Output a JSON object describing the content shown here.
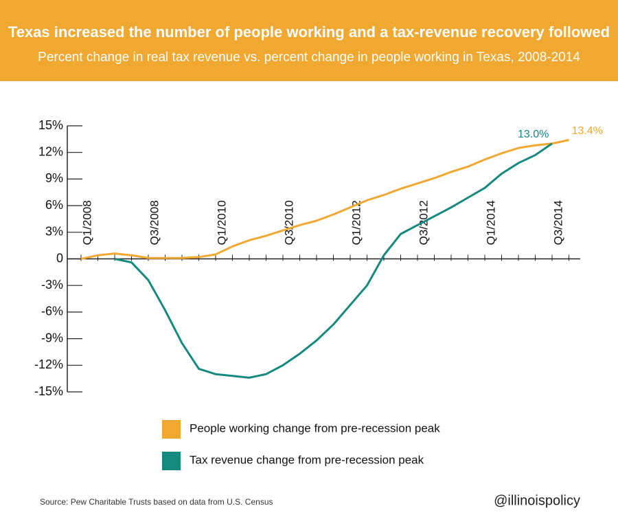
{
  "chart_data": {
    "type": "line",
    "title": "Texas increased the number of people working and a tax-revenue recovery followed",
    "subtitle": "Percent change in real tax revenue vs. percent change in people working in Texas, 2008-2014",
    "categories": [
      "Q1/2008",
      null,
      null,
      null,
      "Q3/2008",
      null,
      null,
      null,
      "Q1/2010",
      null,
      null,
      null,
      "Q3/2010",
      null,
      null,
      null,
      "Q1/2012",
      null,
      null,
      null,
      "Q3/2012",
      null,
      null,
      null,
      "Q1/2014",
      null,
      null,
      null,
      "Q3/2014",
      null
    ],
    "series": [
      {
        "name": "People working change from pre-recession peak",
        "color": "#f0a830",
        "values": [
          0,
          0.4,
          0.6,
          0.4,
          0.1,
          0.1,
          0.1,
          0.2,
          0.5,
          1.4,
          2.1,
          2.6,
          3.2,
          3.8,
          4.3,
          5.0,
          5.8,
          6.6,
          7.2,
          7.9,
          8.5,
          9.1,
          9.8,
          10.4,
          11.2,
          11.9,
          12.5,
          12.8,
          13.0,
          13.4
        ],
        "value_labels": [
          null,
          null,
          null,
          null,
          null,
          null,
          null,
          null,
          null,
          null,
          null,
          null,
          null,
          null,
          null,
          null,
          null,
          null,
          null,
          null,
          null,
          null,
          null,
          null,
          null,
          null,
          null,
          null,
          null,
          "13.4%"
        ]
      },
      {
        "name": "Tax revenue change from pre-recession peak",
        "color": "#138a7d",
        "values": [
          null,
          null,
          0,
          -0.4,
          -2.4,
          -5.8,
          -9.5,
          -12.4,
          -13.0,
          -13.2,
          -13.4,
          -13.0,
          -12.0,
          -10.7,
          -9.2,
          -7.4,
          -5.2,
          -3.0,
          0.4,
          2.8,
          3.8,
          4.8,
          5.8,
          6.9,
          8.0,
          9.6,
          10.8,
          11.7,
          13.0,
          null
        ],
        "value_labels": [
          null,
          null,
          null,
          null,
          null,
          null,
          null,
          null,
          null,
          null,
          null,
          null,
          null,
          null,
          null,
          null,
          null,
          null,
          null,
          null,
          null,
          null,
          null,
          null,
          null,
          null,
          null,
          null,
          "13.0%",
          null
        ]
      }
    ],
    "ylim": [
      -15,
      15
    ],
    "yticks": [
      {
        "value": -15,
        "label": "-15%"
      },
      {
        "value": -12,
        "label": "-12%"
      },
      {
        "value": -9,
        "label": "-9%"
      },
      {
        "value": -6,
        "label": "-6%"
      },
      {
        "value": -3,
        "label": "-3%"
      },
      0,
      {
        "value": 3,
        "label": "3%"
      },
      {
        "value": 6,
        "label": "6%"
      },
      {
        "value": 9,
        "label": "9%"
      },
      {
        "value": 12,
        "label": "12%"
      },
      {
        "value": 15,
        "label": "15%"
      }
    ],
    "source": "Source: Pew Charitable Trusts based on data from U.S. Census",
    "credit": "@illinoispolicy"
  }
}
